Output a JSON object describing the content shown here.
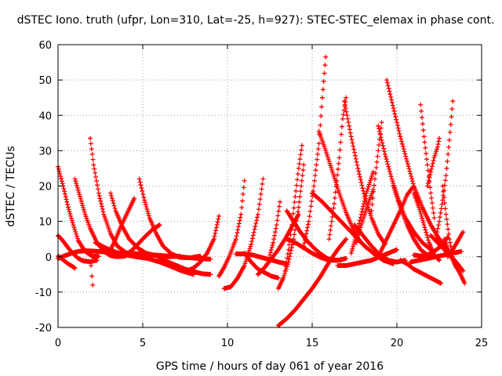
{
  "chart_data": {
    "type": "scatter",
    "title": "dSTEC Iono. truth (ufpr, Lon=310, Lat=-25, h=927): STEC-STEC_elemax in phase cont.",
    "xlabel": "GPS time / hours of day 061 of year 2016",
    "ylabel": "dSTEC  / TECUs",
    "xlim": [
      0,
      25
    ],
    "ylim": [
      -20,
      60
    ],
    "xticks": [
      "0",
      "5",
      "10",
      "15",
      "20",
      "25"
    ],
    "yticks": [
      "-20",
      "-10",
      "0",
      "10",
      "20",
      "30",
      "40",
      "50",
      "60"
    ],
    "grid": true,
    "marker": "+",
    "color": "#ff0000",
    "series": [
      {
        "x": [
          0.0,
          0.3,
          0.6,
          0.9,
          1.2,
          1.6,
          2.0,
          2.4
        ],
        "y": [
          25.5,
          20,
          14,
          9,
          4.5,
          1.5,
          0.2,
          0.1
        ]
      },
      {
        "x": [
          0.0,
          0.2,
          0.4,
          0.6,
          0.8,
          1.0
        ],
        "y": [
          0.2,
          -0.5,
          -1.3,
          -2.0,
          -2.6,
          -3.2
        ]
      },
      {
        "x": [
          0.0,
          0.2,
          0.4,
          0.6,
          0.9,
          1.2,
          1.5,
          1.9,
          2.3
        ],
        "y": [
          6,
          5,
          3.8,
          2.5,
          0.8,
          -0.5,
          -1.2,
          -1.4,
          -1.0
        ]
      },
      {
        "x": [
          1.0,
          1.3,
          1.6,
          1.9,
          2.3,
          2.7,
          3.1,
          3.5,
          4.0
        ],
        "y": [
          22,
          17,
          12,
          8,
          4,
          1.5,
          0.3,
          0.0,
          0.2
        ]
      },
      {
        "x": [
          1.9,
          1.95,
          2.0,
          2.05
        ],
        "y": [
          1.0,
          -2.5,
          -5.5,
          -8.0
        ]
      },
      {
        "x": [
          1.9,
          2.1,
          2.4,
          2.7,
          3.1,
          3.5,
          4.0,
          4.5,
          5.0
        ],
        "y": [
          33.5,
          26,
          18,
          12,
          6.5,
          3,
          1.2,
          0.4,
          0.3
        ]
      },
      {
        "x": [
          0.0,
          0.4,
          0.8,
          1.2,
          1.6,
          2.1,
          2.6,
          3.2,
          3.9,
          4.6,
          5.4,
          6.2
        ],
        "y": [
          -0.5,
          0.3,
          1.0,
          1.5,
          1.7,
          1.6,
          1.4,
          1.2,
          1.0,
          0.9,
          0.6,
          0.3
        ]
      },
      {
        "x": [
          3.1,
          3.4,
          3.8,
          4.2,
          4.7,
          5.2,
          5.8,
          6.5,
          7.2
        ],
        "y": [
          18,
          13,
          8.5,
          5,
          2.5,
          1,
          0.3,
          0,
          0.2
        ]
      },
      {
        "x": [
          3.1,
          3.4,
          3.7,
          4.0,
          4.3,
          4.5
        ],
        "y": [
          2,
          5,
          8.5,
          11.5,
          14.5,
          16.5
        ]
      },
      {
        "x": [
          4.8,
          5.1,
          5.4,
          5.8,
          6.2,
          6.7,
          7.2,
          7.8,
          8.4
        ],
        "y": [
          22,
          16,
          11,
          6.5,
          3,
          0.8,
          -0.2,
          -0.3,
          0.2
        ]
      },
      {
        "x": [
          2.2,
          2.8,
          3.4,
          4.0,
          4.6,
          5.3,
          6.0,
          6.7,
          7.3,
          8.0
        ],
        "y": [
          4,
          2.5,
          1.3,
          0.5,
          0.0,
          -0.5,
          -1.5,
          -2.8,
          -4.0,
          -5.0
        ]
      },
      {
        "x": [
          4.0,
          4.4,
          4.8,
          5.2,
          5.6,
          6.0
        ],
        "y": [
          0.5,
          2,
          4,
          6,
          7.8,
          9
        ]
      },
      {
        "x": [
          6.0,
          6.5,
          7.0,
          7.5,
          8.0,
          8.5,
          9.0
        ],
        "y": [
          -0.5,
          -1.5,
          -2.5,
          -3.5,
          -4.2,
          -4.8,
          -5.0
        ]
      },
      {
        "x": [
          7.6,
          8.0,
          8.4,
          8.8,
          9.2,
          9.5
        ],
        "y": [
          -4,
          -3.2,
          -1.5,
          1.0,
          5.0,
          11.5
        ]
      },
      {
        "x": [
          5.5,
          6.2,
          6.9,
          7.6,
          8.3,
          9.0
        ],
        "y": [
          0.5,
          0.3,
          0.1,
          -0.2,
          -0.5,
          -0.7
        ]
      },
      {
        "x": [
          9.8,
          10.2,
          10.6,
          11.0,
          11.4,
          11.8,
          12.1
        ],
        "y": [
          -9.0,
          -8.5,
          -6.0,
          -2.5,
          3.5,
          12,
          22
        ]
      },
      {
        "x": [
          9.5,
          9.8,
          10.1,
          10.5,
          10.8,
          11.0
        ],
        "y": [
          -5.5,
          -3,
          0,
          5,
          12,
          21.5
        ]
      },
      {
        "x": [
          10.5,
          11.0,
          11.5,
          12.0,
          12.5,
          13.0,
          13.5
        ],
        "y": [
          0.8,
          0.8,
          0.5,
          -0.2,
          -0.8,
          -1.5,
          -2.0
        ]
      },
      {
        "x": [
          11.0,
          11.4,
          11.8,
          12.2,
          12.6,
          13.0
        ],
        "y": [
          1.0,
          -1.5,
          -3.5,
          -4.5,
          -5.5,
          -6.0
        ]
      },
      {
        "x": [
          11.8,
          12.2,
          12.6,
          13.0,
          13.4,
          13.8,
          14.2
        ],
        "y": [
          -5,
          -3,
          -0.5,
          2,
          5,
          8.5,
          12
        ]
      },
      {
        "x": [
          12.5,
          12.7,
          12.9,
          13.1
        ],
        "y": [
          0.5,
          4,
          9,
          15.5
        ]
      },
      {
        "x": [
          13.0,
          13.5,
          14.0,
          14.5,
          15.0,
          15.5,
          16.0,
          16.5,
          17.0
        ],
        "y": [
          -19.5,
          -17.5,
          -15,
          -12,
          -9,
          -5.5,
          -1.5,
          2,
          5
        ]
      },
      {
        "x": [
          13.0,
          13.3,
          13.6,
          13.9,
          14.2,
          14.5
        ],
        "y": [
          -9,
          -6,
          -1.5,
          5,
          14,
          26
        ]
      },
      {
        "x": [
          13.4,
          13.6,
          13.8,
          14.0,
          14.2,
          14.4
        ],
        "y": [
          -4,
          2,
          9,
          17,
          25,
          31.5
        ]
      },
      {
        "x": [
          13.5,
          13.9,
          14.3,
          14.7,
          15.1,
          15.5,
          15.9,
          16.3,
          16.7
        ],
        "y": [
          13,
          10,
          7,
          4.5,
          2.5,
          0.8,
          -0.5,
          -1.0,
          -1.0
        ]
      },
      {
        "x": [
          13.5,
          14.0,
          14.5,
          15.0,
          15.5,
          16.0,
          16.5,
          17.0
        ],
        "y": [
          5,
          4,
          2.5,
          1.0,
          -0.2,
          -1.0,
          -1.0,
          -0.5
        ]
      },
      {
        "x": [
          14.5,
          14.8,
          15.1,
          15.4,
          15.6,
          15.8
        ],
        "y": [
          3,
          10,
          20,
          32,
          45,
          56.5
        ]
      },
      {
        "x": [
          15.4,
          15.8,
          16.2,
          16.6,
          17.0,
          17.4,
          17.8,
          18.2
        ],
        "y": [
          35.5,
          30,
          24,
          18,
          12.5,
          8,
          4.5,
          2.5
        ]
      },
      {
        "x": [
          16.0,
          16.3,
          16.6,
          16.8,
          17.0
        ],
        "y": [
          5,
          15,
          28,
          39,
          45
        ]
      },
      {
        "x": [
          16.9,
          17.3,
          17.7,
          18.1,
          18.5,
          18.9,
          19.3
        ],
        "y": [
          44,
          34,
          25,
          17,
          11,
          6.5,
          3.5
        ]
      },
      {
        "x": [
          15.0,
          15.6,
          16.2,
          16.8,
          17.4,
          18.0,
          18.6,
          19.2,
          19.8
        ],
        "y": [
          18,
          15.5,
          12.5,
          9.5,
          6.5,
          3.5,
          1,
          -1,
          -2
        ]
      },
      {
        "x": [
          16.5,
          17.0,
          17.5,
          18.0,
          18.5,
          19.0,
          19.5,
          20.0
        ],
        "y": [
          -2.5,
          -2.5,
          -2,
          -1.5,
          -1,
          0,
          1,
          2
        ]
      },
      {
        "x": [
          17.3,
          17.6,
          17.9,
          18.2,
          18.6
        ],
        "y": [
          1,
          6,
          12,
          18,
          24
        ]
      },
      {
        "x": [
          17.6,
          17.9,
          18.2,
          18.6
        ],
        "y": [
          4,
          9,
          13.5,
          19
        ]
      },
      {
        "x": [
          17.5,
          18.0,
          18.5,
          19.0,
          19.5,
          20.0,
          20.5
        ],
        "y": [
          9,
          6,
          3,
          0.5,
          -1,
          -1.5,
          -1
        ]
      },
      {
        "x": [
          18.5,
          18.7,
          18.9,
          19.1
        ],
        "y": [
          13,
          22,
          30,
          38
        ]
      },
      {
        "x": [
          18.9,
          19.3,
          19.7,
          20.1,
          20.5,
          21.0,
          21.5,
          22.0
        ],
        "y": [
          37,
          29,
          22,
          16,
          11,
          7,
          4,
          2
        ]
      },
      {
        "x": [
          19.4,
          19.8,
          20.2,
          20.6,
          21.0,
          21.5,
          22.0,
          22.5,
          23.0
        ],
        "y": [
          50,
          42,
          34,
          27,
          20,
          14,
          9,
          5,
          2
        ]
      },
      {
        "x": [
          19.0,
          19.4,
          19.8,
          20.2,
          20.6,
          21.0
        ],
        "y": [
          1,
          5,
          9,
          13,
          17.5,
          20
        ]
      },
      {
        "x": [
          19.8,
          20.2,
          20.6,
          21.0,
          21.4,
          21.8
        ],
        "y": [
          20,
          14,
          9,
          5,
          2,
          0.5
        ]
      },
      {
        "x": [
          20.2,
          20.6,
          21.0,
          21.4,
          21.8,
          22.2,
          22.6
        ],
        "y": [
          -1,
          -2,
          -3.5,
          -4.5,
          -5.5,
          -6.5,
          -7.5
        ]
      },
      {
        "x": [
          21.0,
          21.4,
          21.8,
          22.2,
          22.6,
          23.0
        ],
        "y": [
          0.5,
          0.2,
          0.5,
          1.5,
          3.0,
          5.5
        ]
      },
      {
        "x": [
          20.8,
          21.3,
          21.8,
          22.3,
          22.8,
          23.3,
          23.8
        ],
        "y": [
          -1.5,
          -1,
          -0.5,
          0,
          0.5,
          1,
          1.5
        ]
      },
      {
        "x": [
          21.4,
          21.6,
          21.8,
          22.0,
          22.2
        ],
        "y": [
          43,
          34,
          26,
          18,
          11
        ]
      },
      {
        "x": [
          21.0,
          21.3,
          21.6,
          21.9,
          22.2,
          22.5
        ],
        "y": [
          18,
          14,
          9,
          4,
          0.5,
          -1
        ]
      },
      {
        "x": [
          21.8,
          22.0,
          22.2,
          22.4,
          22.5
        ],
        "y": [
          20,
          24,
          28,
          31,
          33.5
        ]
      },
      {
        "x": [
          22.3,
          22.5,
          22.7,
          22.9,
          23.1,
          23.3
        ],
        "y": [
          5,
          10,
          16,
          23,
          33,
          44
        ]
      },
      {
        "x": [
          22.7,
          22.9,
          23.1,
          23.3,
          23.5
        ],
        "y": [
          20,
          12,
          5,
          0,
          -3
        ]
      },
      {
        "x": [
          22.8,
          23.1,
          23.4,
          23.7,
          24.0
        ],
        "y": [
          5,
          1,
          -2,
          -4.5,
          -7.5
        ]
      },
      {
        "x": [
          22.0,
          22.5,
          23.0,
          23.5,
          23.9
        ],
        "y": [
          6,
          3.5,
          1,
          -1.5,
          -4
        ]
      },
      {
        "x": [
          23.0,
          23.3,
          23.6,
          23.9
        ],
        "y": [
          0,
          2,
          4.5,
          7
        ]
      }
    ]
  }
}
